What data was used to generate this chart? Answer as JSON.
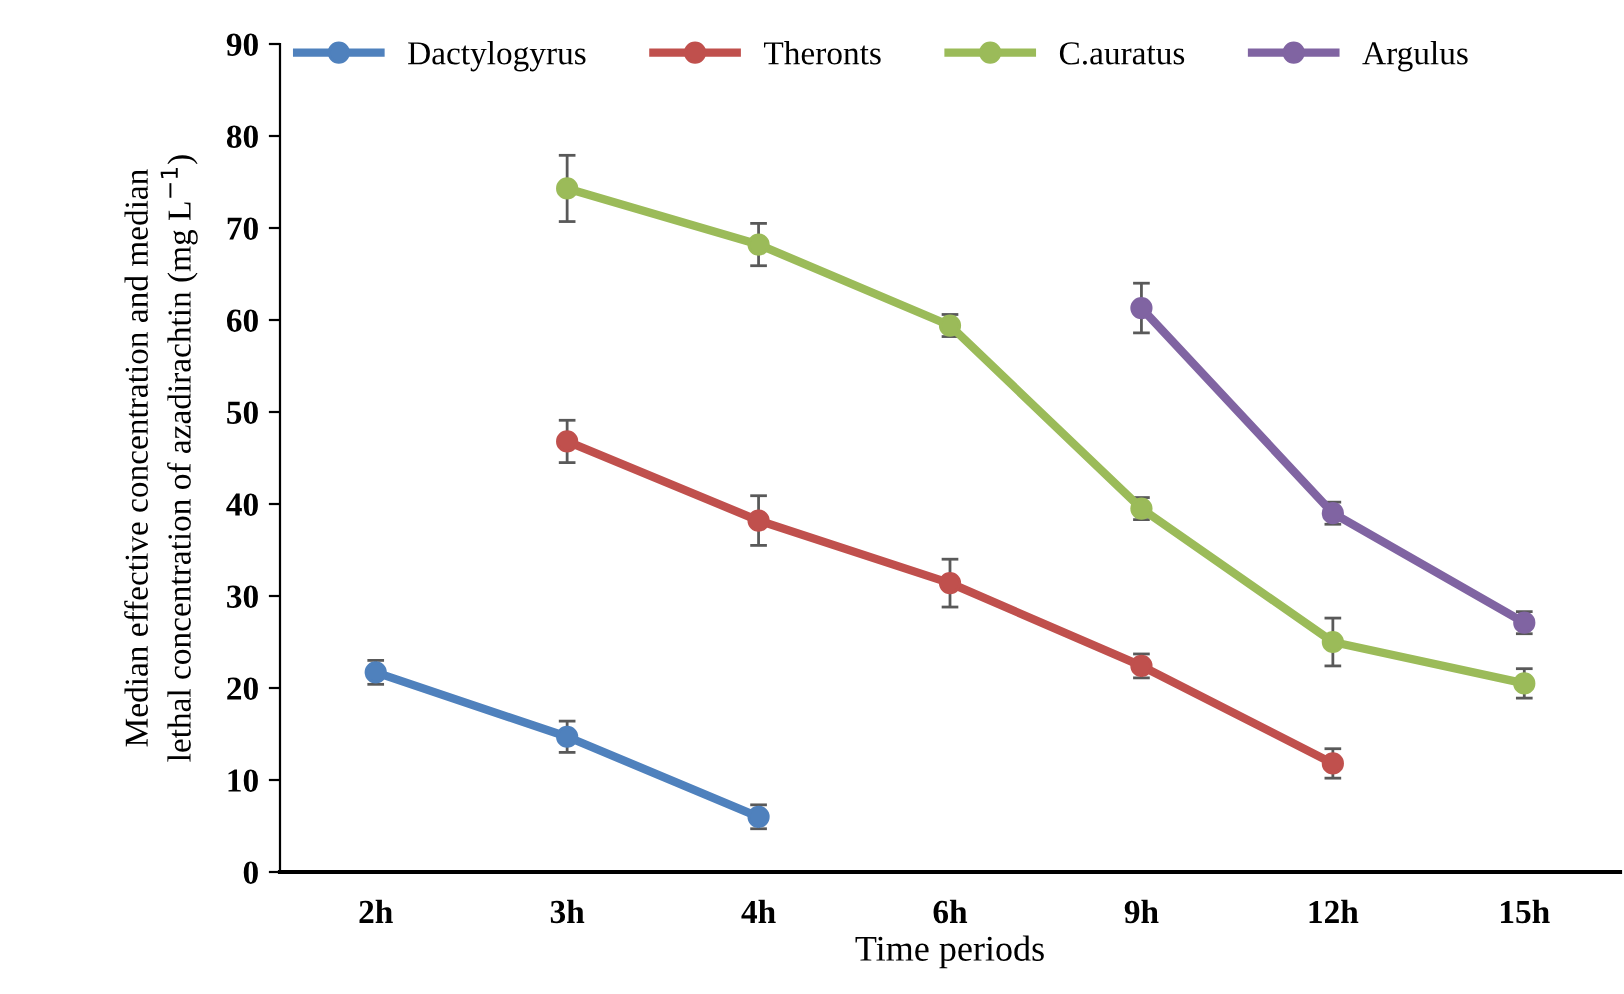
{
  "chart_data": {
    "type": "line",
    "xlabel": "Time periods",
    "ylabel": "Median effective concentration and median\nlethal concentration of azadirachtin (mg L$^{−1}$)",
    "categories": [
      "2h",
      "3h",
      "4h",
      "6h",
      "9h",
      "12h",
      "15h"
    ],
    "ylim": [
      0,
      90
    ],
    "yticks": [
      0,
      10,
      20,
      30,
      40,
      50,
      60,
      70,
      80,
      90
    ],
    "grid": false,
    "legend": "top",
    "marker": "circle",
    "line_style": "solid",
    "series": [
      {
        "name": "Dactylogyrus",
        "color": "#4f81bd",
        "values": [
          21.7,
          14.7,
          6.0,
          null,
          null,
          null,
          null
        ],
        "errors": [
          1.3,
          1.7,
          1.3,
          null,
          null,
          null,
          null
        ]
      },
      {
        "name": "Theronts",
        "color": "#c0504d",
        "values": [
          null,
          46.8,
          38.2,
          31.4,
          22.4,
          11.8,
          null
        ],
        "errors": [
          null,
          2.3,
          2.7,
          2.6,
          1.3,
          1.6,
          null
        ]
      },
      {
        "name": "C.auratus",
        "color": "#9bbb59",
        "values": [
          null,
          74.3,
          68.2,
          59.4,
          39.5,
          25.0,
          20.5
        ],
        "errors": [
          null,
          3.6,
          2.3,
          1.2,
          1.2,
          2.6,
          1.6
        ]
      },
      {
        "name": "Argulus",
        "color": "#8064a2",
        "values": [
          null,
          null,
          null,
          null,
          61.3,
          39.0,
          27.1
        ],
        "errors": [
          null,
          null,
          null,
          null,
          2.7,
          1.2,
          1.2
        ]
      }
    ]
  }
}
